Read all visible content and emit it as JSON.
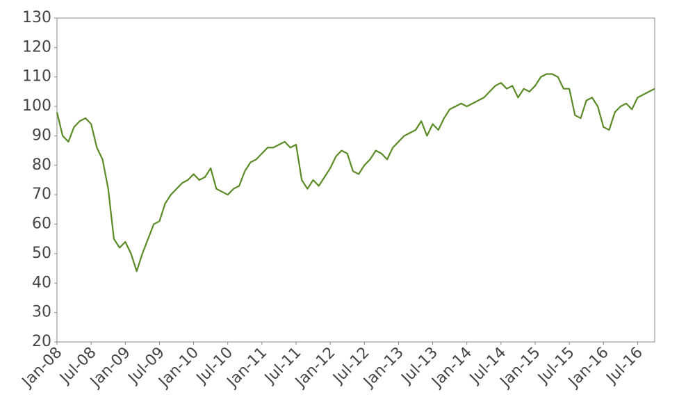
{
  "chart_data": {
    "type": "line",
    "categories": [
      "Jan-08",
      null,
      null,
      null,
      null,
      null,
      "Jul-08",
      null,
      null,
      null,
      null,
      null,
      "Jan-09",
      null,
      null,
      null,
      null,
      null,
      "Jul-09",
      null,
      null,
      null,
      null,
      null,
      "Jan-10",
      null,
      null,
      null,
      null,
      null,
      "Jul-10",
      null,
      null,
      null,
      null,
      null,
      "Jan-11",
      null,
      null,
      null,
      null,
      null,
      "Jul-11",
      null,
      null,
      null,
      null,
      null,
      "Jan-12",
      null,
      null,
      null,
      null,
      null,
      "Jul-12",
      null,
      null,
      null,
      null,
      null,
      "Jan-13",
      null,
      null,
      null,
      null,
      null,
      "Jul-13",
      null,
      null,
      null,
      null,
      null,
      "Jan-14",
      null,
      null,
      null,
      null,
      null,
      "Jul-14",
      null,
      null,
      null,
      null,
      null,
      "Jan-15",
      null,
      null,
      null,
      null,
      null,
      "Jul-15",
      null,
      null,
      null,
      null,
      null,
      "Jan-16",
      null,
      null,
      null,
      null,
      null,
      "Jul-16",
      null,
      null,
      null
    ],
    "series": [
      {
        "color": "#5a8a25",
        "values": [
          98,
          90,
          88,
          93,
          95,
          96,
          94,
          86,
          82,
          72,
          55,
          52,
          54,
          50,
          44,
          50,
          55,
          60,
          61,
          67,
          70,
          72,
          74,
          75,
          77,
          75,
          76,
          79,
          72,
          71,
          70,
          72,
          73,
          78,
          81,
          82,
          84,
          86,
          86,
          87,
          88,
          86,
          87,
          75,
          72,
          75,
          73,
          76,
          79,
          83,
          85,
          84,
          78,
          77,
          80,
          82,
          85,
          84,
          82,
          86,
          88,
          90,
          91,
          92,
          95,
          90,
          94,
          92,
          96,
          99,
          100,
          101,
          100,
          101,
          102,
          103,
          105,
          107,
          108,
          106,
          107,
          103,
          106,
          105,
          107,
          110,
          111,
          111,
          110,
          106,
          106,
          97,
          96,
          102,
          103,
          100,
          93,
          92,
          98,
          100,
          101,
          99,
          103,
          104,
          105,
          106
        ]
      }
    ],
    "ylim": [
      20,
      130
    ],
    "yticks": [
      20,
      30,
      40,
      50,
      60,
      70,
      80,
      90,
      100,
      110,
      120,
      130
    ]
  }
}
